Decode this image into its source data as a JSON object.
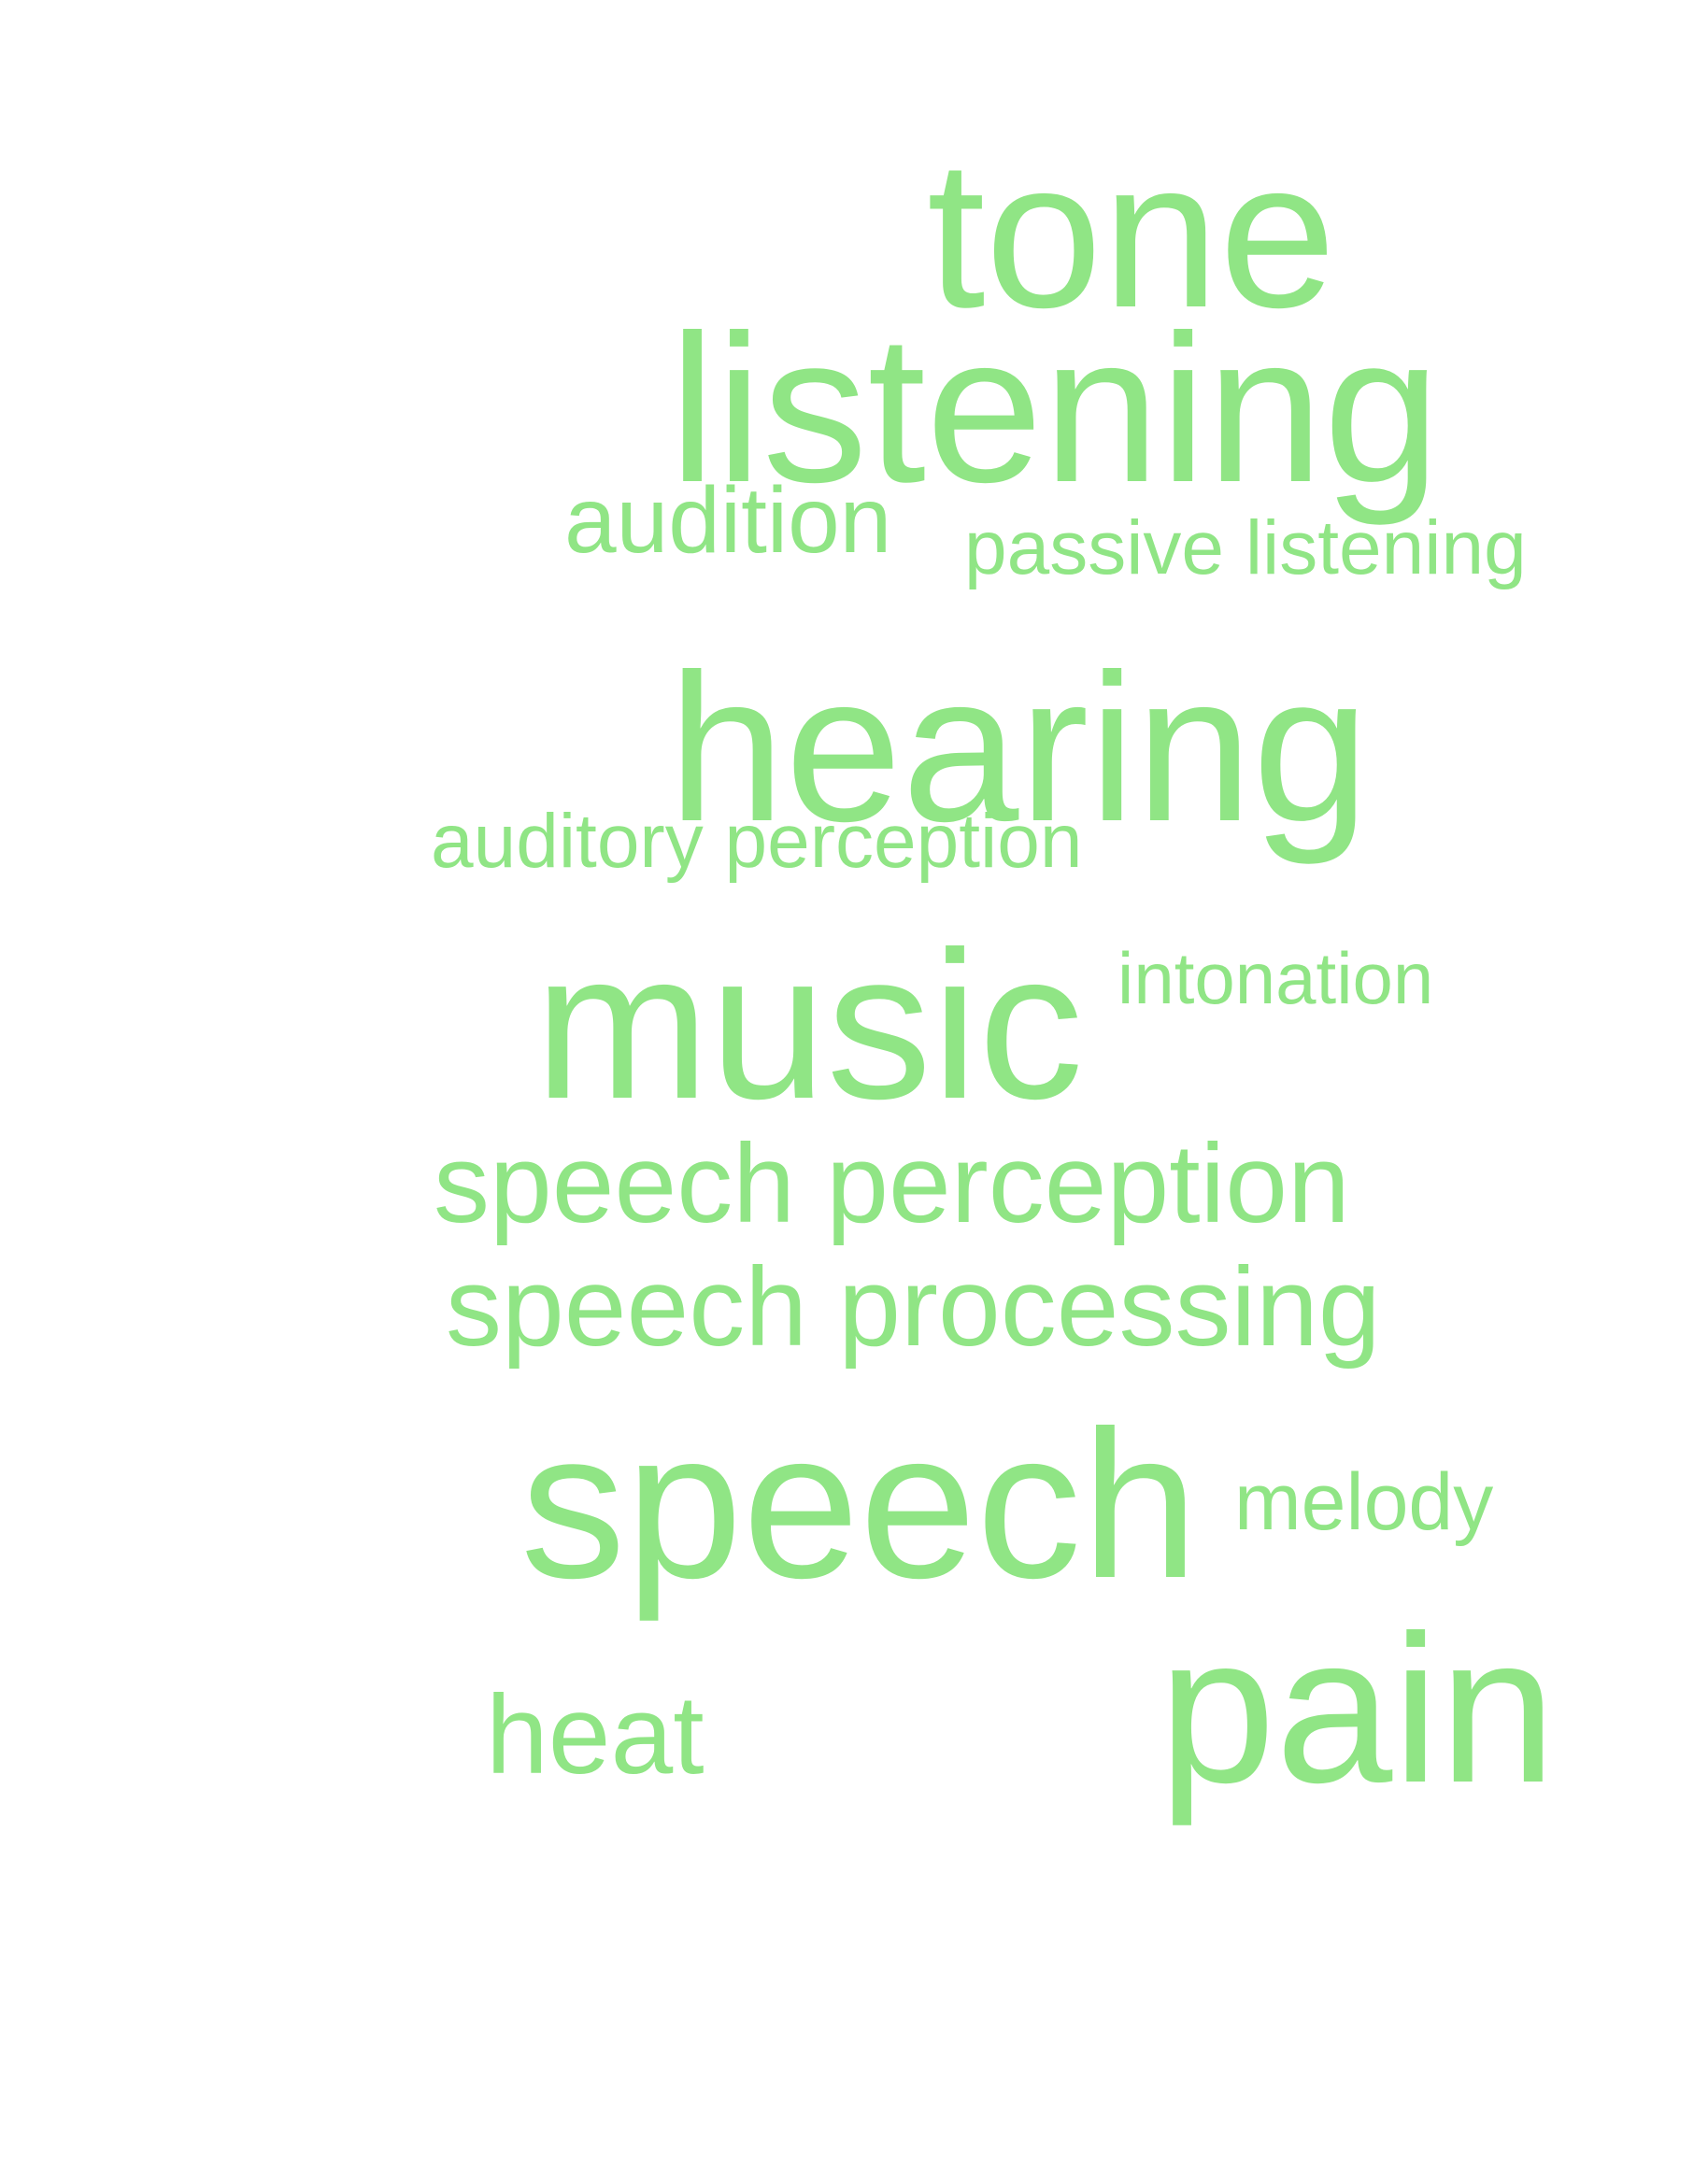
{
  "colors": {
    "background": "#ffffff",
    "word": "#90e585"
  },
  "words": {
    "tone": "tone",
    "listening": "listening",
    "audition": "audition",
    "passive_listening": "passive listening",
    "hearing": "hearing",
    "auditory_perception": "auditory perception",
    "music": "music",
    "intonation": "intonation",
    "speech_perception": "speech perception",
    "speech_processing": "speech processing",
    "speech": "speech",
    "melody": "melody",
    "pain": "pain",
    "heat": "heat"
  }
}
